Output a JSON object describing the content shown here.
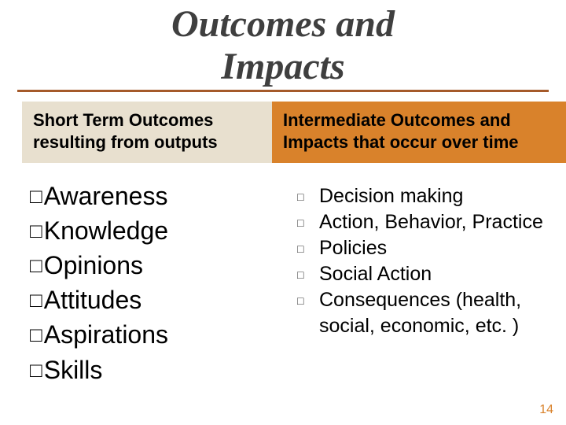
{
  "title_line1": "Outcomes and",
  "title_line2": "Impacts",
  "box_left_line1": "Short Term Outcomes",
  "box_left_line2": "resulting from outputs",
  "box_right_line1": "Intermediate Outcomes and",
  "box_right_line2": "Impacts that occur over time",
  "left_items": [
    "Awareness",
    "Knowledge",
    "Opinions",
    "Attitudes",
    "Aspirations",
    "Skills"
  ],
  "right_items": [
    "Decision making",
    "Action, Behavior, Practice",
    "Policies",
    "Social Action",
    "Consequences (health, social, economic, etc. )"
  ],
  "page_number": "14",
  "colors": {
    "box_left_bg": "#e8e0cf",
    "box_right_bg": "#d9822b",
    "rule": "#a55a2a",
    "pagenum": "#d9822b"
  }
}
